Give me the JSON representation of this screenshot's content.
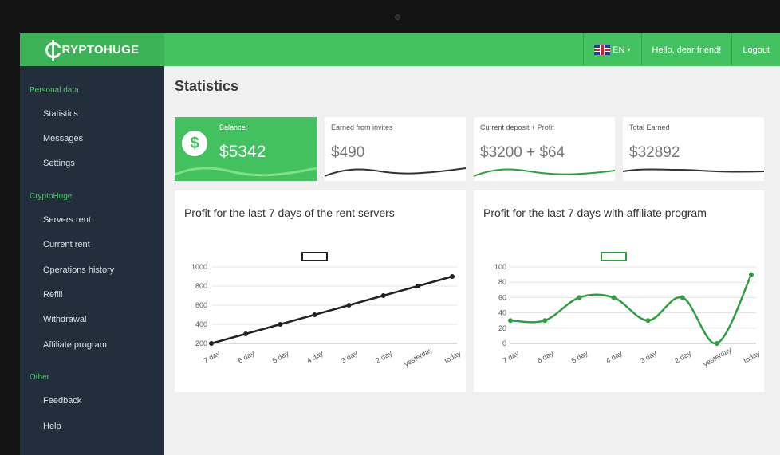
{
  "brand": {
    "name": "RYPTOHUGE",
    "logo_letter": "C"
  },
  "topnav": {
    "language": "EN",
    "greeting": "Hello, dear friend!",
    "logout": "Logout"
  },
  "sidebar": {
    "sections": [
      {
        "title": "Personal data",
        "items": [
          "Statistics",
          "Messages",
          "Settings"
        ]
      },
      {
        "title": "CryptoHuge",
        "items": [
          "Servers rent",
          "Current rent",
          "Operations history",
          "Refill",
          "Withdrawal",
          "Affiliate program"
        ]
      },
      {
        "title": "Other",
        "items": [
          "Feedback",
          "Help"
        ]
      }
    ]
  },
  "page": {
    "title": "Statistics"
  },
  "stats": [
    {
      "caption": "Balance:",
      "value": "$5342",
      "icon": "dollar-icon"
    },
    {
      "caption": "Earned from invites",
      "value": "$490"
    },
    {
      "caption": "Current deposit + Profit",
      "value": "$3200 + $64"
    },
    {
      "caption": "Total Earned",
      "value": "$32892"
    }
  ],
  "colors": {
    "accent": "#43c160",
    "sidebar": "#232e3c",
    "dark_line": "#222222",
    "green_line": "#2e9e3e"
  },
  "chart_data": [
    {
      "type": "line",
      "title": "Profit for the last 7 days of the rent servers",
      "categories": [
        "7 day",
        "6 day",
        "5 day",
        "4 day",
        "3 day",
        "2 day",
        "yesterday",
        "today"
      ],
      "series": [
        {
          "values": [
            200,
            300,
            400,
            500,
            600,
            700,
            800,
            900
          ]
        }
      ],
      "yticks": [
        200,
        400,
        600,
        800,
        1000
      ],
      "ylim": [
        200,
        1000
      ],
      "grid": true,
      "legend": "top-center"
    },
    {
      "type": "line",
      "title": "Profit for the last 7 days with affiliate program",
      "categories": [
        "7 day",
        "6 day",
        "5 day",
        "4 day",
        "3 day",
        "2 day",
        "yesterday",
        "today"
      ],
      "series": [
        {
          "values": [
            30,
            30,
            60,
            60,
            30,
            60,
            0,
            90
          ]
        }
      ],
      "yticks": [
        0,
        20,
        40,
        60,
        80,
        100
      ],
      "ylim": [
        0,
        100
      ],
      "grid": true,
      "smooth": true,
      "legend": "top-center"
    }
  ]
}
